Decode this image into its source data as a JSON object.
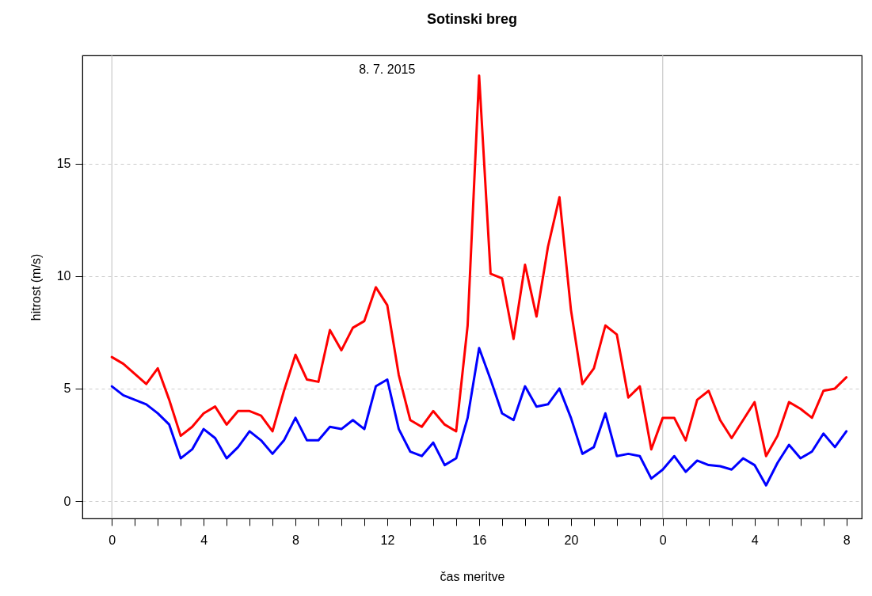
{
  "chart_data": {
    "type": "line",
    "title": "Sotinski breg",
    "xlabel": "čas meritve",
    "ylabel": "hitrost (m/s)",
    "annotations": [
      "8. 7. 2015"
    ],
    "x": [
      "2015-07-08T00:00",
      "2015-07-08T00:30",
      "2015-07-08T01:00",
      "2015-07-08T01:30",
      "2015-07-08T02:00",
      "2015-07-08T02:30",
      "2015-07-08T03:00",
      "2015-07-08T03:30",
      "2015-07-08T04:00",
      "2015-07-08T04:30",
      "2015-07-08T05:00",
      "2015-07-08T05:30",
      "2015-07-08T06:00",
      "2015-07-08T06:30",
      "2015-07-08T07:00",
      "2015-07-08T07:30",
      "2015-07-08T08:00",
      "2015-07-08T08:30",
      "2015-07-08T09:00",
      "2015-07-08T09:30",
      "2015-07-08T10:00",
      "2015-07-08T10:30",
      "2015-07-08T11:00",
      "2015-07-08T11:30",
      "2015-07-08T12:00",
      "2015-07-08T12:30",
      "2015-07-08T13:00",
      "2015-07-08T13:30",
      "2015-07-08T14:00",
      "2015-07-08T14:30",
      "2015-07-08T15:00",
      "2015-07-08T15:30",
      "2015-07-08T16:00",
      "2015-07-08T16:30",
      "2015-07-08T17:00",
      "2015-07-08T17:30",
      "2015-07-08T18:00",
      "2015-07-08T18:30",
      "2015-07-08T19:00",
      "2015-07-08T19:30",
      "2015-07-08T20:00",
      "2015-07-08T20:30",
      "2015-07-08T21:00",
      "2015-07-08T21:30",
      "2015-07-08T22:00",
      "2015-07-08T22:30",
      "2015-07-08T23:00",
      "2015-07-08T23:30",
      "2015-07-09T00:00",
      "2015-07-09T00:30",
      "2015-07-09T01:00",
      "2015-07-09T01:30",
      "2015-07-09T02:00",
      "2015-07-09T02:30",
      "2015-07-09T03:00",
      "2015-07-09T03:30",
      "2015-07-09T04:00",
      "2015-07-09T04:30",
      "2015-07-09T05:00",
      "2015-07-09T05:30",
      "2015-07-09T06:00",
      "2015-07-09T06:30",
      "2015-07-09T07:00",
      "2015-07-09T07:30",
      "2015-07-09T08:00"
    ],
    "series": [
      {
        "color": "#ff0000",
        "values": [
          6.4,
          6.1,
          5.65,
          5.2,
          5.9,
          4.5,
          2.9,
          3.3,
          3.9,
          4.2,
          3.4,
          4.0,
          4.0,
          3.8,
          3.1,
          4.9,
          6.5,
          5.4,
          5.3,
          7.6,
          6.7,
          7.7,
          8.0,
          9.5,
          8.7,
          5.6,
          3.6,
          3.3,
          4.0,
          3.4,
          3.1,
          7.8,
          18.9,
          10.1,
          9.9,
          7.2,
          10.5,
          8.2,
          11.3,
          13.5,
          8.5,
          5.2,
          5.9,
          7.8,
          7.4,
          4.6,
          5.1,
          2.3,
          3.7,
          3.7,
          2.7,
          4.5,
          4.9,
          3.6,
          2.8,
          3.6,
          4.4,
          2.0,
          2.9,
          4.4,
          4.1,
          3.7,
          4.9,
          5.0,
          5.5
        ]
      },
      {
        "color": "#0000ff",
        "values": [
          5.1,
          4.7,
          4.5,
          4.3,
          3.9,
          3.4,
          1.9,
          2.3,
          3.2,
          2.8,
          1.9,
          2.4,
          3.1,
          2.7,
          2.1,
          2.7,
          3.7,
          2.7,
          2.7,
          3.3,
          3.2,
          3.6,
          3.2,
          5.1,
          5.4,
          3.2,
          2.2,
          2.0,
          2.6,
          1.6,
          1.9,
          3.7,
          6.8,
          5.4,
          3.9,
          3.6,
          5.1,
          4.2,
          4.3,
          5.0,
          3.7,
          2.1,
          2.4,
          3.9,
          2.0,
          2.1,
          2.0,
          1.0,
          1.4,
          2.0,
          1.3,
          1.8,
          1.6,
          1.55,
          1.4,
          1.9,
          1.6,
          0.7,
          1.7,
          2.5,
          1.9,
          2.2,
          3.0,
          2.4,
          3.1
        ]
      }
    ],
    "xlim": [
      "2015-07-07T22:43",
      "2015-07-09T08:40"
    ],
    "ylim": [
      -0.77,
      19.8
    ],
    "xticks": [
      {
        "value": "2015-07-08T00:00",
        "label": "0"
      },
      {
        "value": "2015-07-08T01:00",
        "label": null
      },
      {
        "value": "2015-07-08T02:00",
        "label": null
      },
      {
        "value": "2015-07-08T03:00",
        "label": null
      },
      {
        "value": "2015-07-08T04:00",
        "label": "4"
      },
      {
        "value": "2015-07-08T05:00",
        "label": null
      },
      {
        "value": "2015-07-08T06:00",
        "label": null
      },
      {
        "value": "2015-07-08T07:00",
        "label": null
      },
      {
        "value": "2015-07-08T08:00",
        "label": "8"
      },
      {
        "value": "2015-07-08T09:00",
        "label": null
      },
      {
        "value": "2015-07-08T10:00",
        "label": null
      },
      {
        "value": "2015-07-08T11:00",
        "label": null
      },
      {
        "value": "2015-07-08T12:00",
        "label": "12"
      },
      {
        "value": "2015-07-08T13:00",
        "label": null
      },
      {
        "value": "2015-07-08T14:00",
        "label": null
      },
      {
        "value": "2015-07-08T15:00",
        "label": null
      },
      {
        "value": "2015-07-08T16:00",
        "label": "16"
      },
      {
        "value": "2015-07-08T17:00",
        "label": null
      },
      {
        "value": "2015-07-08T18:00",
        "label": null
      },
      {
        "value": "2015-07-08T19:00",
        "label": null
      },
      {
        "value": "2015-07-08T20:00",
        "label": "20"
      },
      {
        "value": "2015-07-08T21:00",
        "label": null
      },
      {
        "value": "2015-07-08T22:00",
        "label": null
      },
      {
        "value": "2015-07-08T23:00",
        "label": null
      },
      {
        "value": "2015-07-09T00:00",
        "label": "0"
      },
      {
        "value": "2015-07-09T01:00",
        "label": null
      },
      {
        "value": "2015-07-09T02:00",
        "label": null
      },
      {
        "value": "2015-07-09T03:00",
        "label": null
      },
      {
        "value": "2015-07-09T04:00",
        "label": "4"
      },
      {
        "value": "2015-07-09T05:00",
        "label": null
      },
      {
        "value": "2015-07-09T06:00",
        "label": null
      },
      {
        "value": "2015-07-09T07:00",
        "label": null
      },
      {
        "value": "2015-07-09T08:00",
        "label": "8"
      }
    ],
    "yticks": [
      0,
      5,
      10,
      15
    ],
    "grid": "y",
    "line_style": "solid",
    "ref_lines": [
      {
        "axis": "x",
        "value": "2015-07-08T00:00",
        "color": "#bebebe"
      },
      {
        "axis": "x",
        "value": "2015-07-09T00:00",
        "color": "#bebebe"
      }
    ]
  }
}
